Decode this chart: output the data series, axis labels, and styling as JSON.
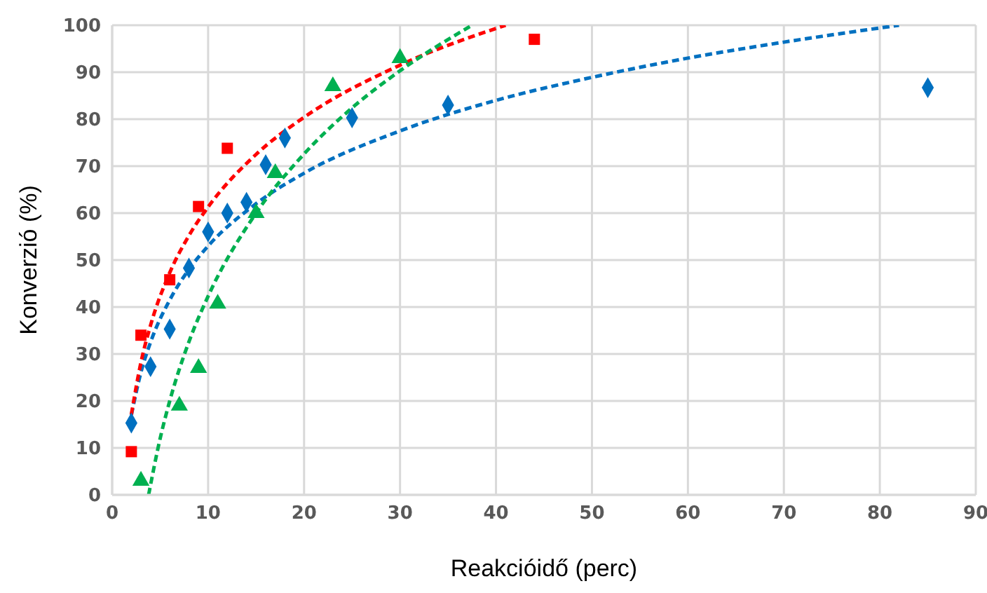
{
  "chart_data": {
    "type": "scatter",
    "xlabel": "Reakcióidő (perc)",
    "ylabel": "Konverzió (%)",
    "xlim": [
      0,
      90
    ],
    "xticks": [
      0,
      10,
      20,
      30,
      40,
      50,
      60,
      70,
      80,
      90
    ],
    "ylim": [
      0,
      100
    ],
    "yticks": [
      0,
      10,
      20,
      30,
      40,
      50,
      60,
      70,
      80,
      90,
      100
    ],
    "grid": true,
    "legend": false,
    "series": [
      {
        "marker": "diamond",
        "color": "#0070c0",
        "x": [
          2,
          4,
          6,
          8,
          10,
          12,
          14,
          16,
          18,
          25,
          35,
          85
        ],
        "values": [
          15.3,
          27.3,
          35.3,
          48.3,
          56,
          60,
          62.3,
          70.3,
          76,
          80.3,
          83,
          86.7
        ]
      },
      {
        "marker": "square",
        "color": "#ff0000",
        "x": [
          2,
          3,
          6,
          9,
          12,
          44
        ],
        "values": [
          9.2,
          34,
          45.8,
          61.4,
          73.8,
          97
        ]
      },
      {
        "marker": "triangle",
        "color": "#00b050",
        "x": [
          3,
          7,
          9,
          11,
          15,
          17,
          23,
          30
        ],
        "values": [
          3,
          19,
          27,
          40.7,
          60,
          68.5,
          87,
          93
        ]
      },
      {
        "type": "line",
        "line_style": "dashed",
        "marker": "none",
        "color": "#0070c0",
        "x": [
          2,
          3,
          4,
          6,
          8,
          10,
          15,
          20,
          30,
          40,
          50,
          60,
          70,
          82
        ],
        "values": [
          17,
          26.1,
          32.5,
          41.5,
          48,
          53,
          62,
          68.5,
          77.5,
          84,
          88.9,
          93,
          96.4,
          100
        ]
      },
      {
        "type": "line",
        "line_style": "dashed",
        "marker": "none",
        "color": "#ff0000",
        "x": [
          2,
          3,
          4,
          6,
          8,
          10,
          15,
          20,
          30,
          41
        ],
        "values": [
          17.1,
          28.2,
          36.1,
          47.3,
          55.2,
          61.3,
          72.5,
          80.4,
          91.5,
          100
        ]
      },
      {
        "type": "line",
        "line_style": "dashed",
        "marker": "none",
        "color": "#00b050",
        "x": [
          3.8,
          5,
          6,
          8,
          10,
          15,
          20,
          25,
          30,
          37.5
        ],
        "values": [
          0,
          12,
          20,
          32.6,
          42.3,
          60,
          72.6,
          82.4,
          90.3,
          100
        ]
      }
    ]
  }
}
